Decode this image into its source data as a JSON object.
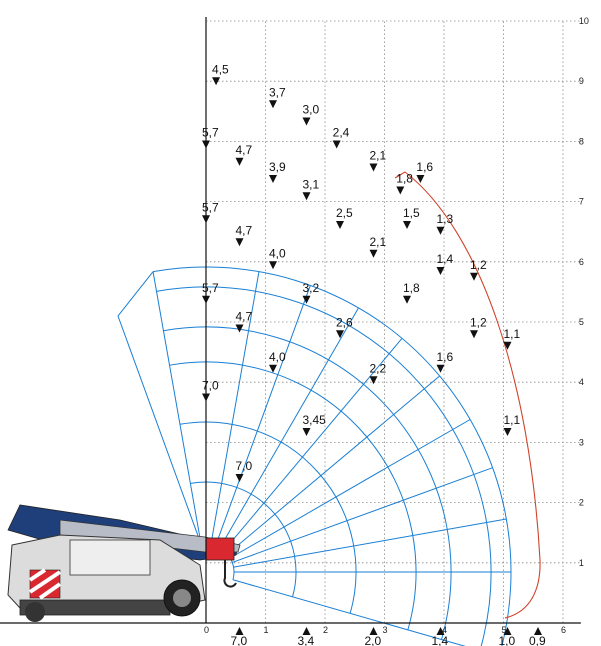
{
  "chart_data": {
    "type": "diagram",
    "x_ticks": [
      "0",
      "1",
      "2",
      "3",
      "4",
      "5",
      "6"
    ],
    "y_ticks": [
      "1",
      "2",
      "3",
      "4",
      "5",
      "6",
      "7",
      "8",
      "9",
      "10"
    ],
    "xlim": [
      0,
      6.3
    ],
    "ylim": [
      0,
      10
    ],
    "grid": true,
    "load_capacities": [
      {
        "text": "4,5",
        "x": 0.3,
        "y": 9.3
      },
      {
        "text": "3,7",
        "x": 2.0,
        "y": 8.9
      },
      {
        "text": "3,0",
        "x": 3.0,
        "y": 8.6
      },
      {
        "text": "2,4",
        "x": 3.9,
        "y": 8.2
      },
      {
        "text": "2,1",
        "x": 5.0,
        "y": 7.8
      },
      {
        "text": "1,8",
        "x": 5.8,
        "y": 7.4
      },
      {
        "text": "1,6",
        "x": 6.4,
        "y": 7.6
      },
      {
        "text": "5,7",
        "x": 0.0,
        "y": 8.2
      },
      {
        "text": "4,7",
        "x": 1.0,
        "y": 7.9
      },
      {
        "text": "3,9",
        "x": 2.0,
        "y": 7.6
      },
      {
        "text": "3,1",
        "x": 3.0,
        "y": 7.3
      },
      {
        "text": "2,5",
        "x": 4.0,
        "y": 6.8
      },
      {
        "text": "1,5",
        "x": 6.0,
        "y": 6.8
      },
      {
        "text": "1,3",
        "x": 7.0,
        "y": 6.7
      },
      {
        "text": "5,7",
        "x": 0.0,
        "y": 6.9
      },
      {
        "text": "4,7",
        "x": 1.0,
        "y": 6.5
      },
      {
        "text": "4,0",
        "x": 2.0,
        "y": 6.1
      },
      {
        "text": "2,1",
        "x": 5.0,
        "y": 6.3
      },
      {
        "text": "1,4",
        "x": 7.0,
        "y": 6.0
      },
      {
        "text": "1,2",
        "x": 8.0,
        "y": 5.9
      },
      {
        "text": "3,2",
        "x": 3.0,
        "y": 5.5
      },
      {
        "text": "1,8",
        "x": 6.0,
        "y": 5.5
      },
      {
        "text": "5,7",
        "x": 0.0,
        "y": 5.5
      },
      {
        "text": "4,7",
        "x": 1.0,
        "y": 5.0
      },
      {
        "text": "2,6",
        "x": 4.0,
        "y": 4.9
      },
      {
        "text": "1,2",
        "x": 8.0,
        "y": 4.9
      },
      {
        "text": "1,1",
        "x": 9.0,
        "y": 4.7
      },
      {
        "text": "4,0",
        "x": 2.0,
        "y": 4.3
      },
      {
        "text": "1,6",
        "x": 7.0,
        "y": 4.3
      },
      {
        "text": "7,0",
        "x": 0.0,
        "y": 3.8
      },
      {
        "text": "2,2",
        "x": 5.0,
        "y": 4.1
      },
      {
        "text": "3,45",
        "x": 3.0,
        "y": 3.2
      },
      {
        "text": "1,1",
        "x": 9.0,
        "y": 3.2
      },
      {
        "text": "7,0",
        "x": 1.0,
        "y": 2.4
      }
    ],
    "ground_capacities": [
      {
        "text": "7,0",
        "x": 1.0
      },
      {
        "text": "3,4",
        "x": 3.0
      },
      {
        "text": "2,0",
        "x": 5.0
      },
      {
        "text": "1,4",
        "x": 7.0
      },
      {
        "text": "1,0",
        "x": 9.0
      },
      {
        "text": "0,9",
        "x": 9.1
      }
    ]
  }
}
